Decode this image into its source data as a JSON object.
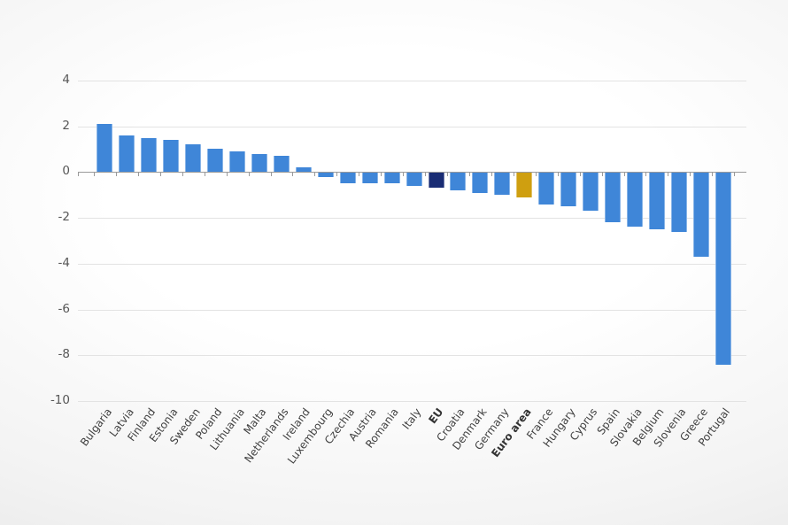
{
  "chart_data": {
    "type": "bar",
    "orientation": "vertical",
    "categories": [
      "Bulgaria",
      "Latvia",
      "Finland",
      "Estonia",
      "Sweden",
      "Poland",
      "Lithuania",
      "Malta",
      "Netherlands",
      "Ireland",
      "Luxembourg",
      "Czechia",
      "Austria",
      "Romania",
      "Italy",
      "EU",
      "Croatia",
      "Denmark",
      "Germany",
      "Euro area",
      "France",
      "Hungary",
      "Cyprus",
      "Spain",
      "Slovakia",
      "Belgium",
      "Slovenia",
      "Greece",
      "Portugal"
    ],
    "values": [
      2.1,
      1.6,
      1.5,
      1.4,
      1.2,
      1.0,
      0.9,
      0.8,
      0.7,
      0.2,
      -0.2,
      -0.5,
      -0.5,
      -0.5,
      -0.6,
      -0.7,
      -0.8,
      -0.9,
      -1.0,
      -1.1,
      -1.4,
      -1.5,
      -1.7,
      -2.2,
      -2.4,
      -2.5,
      -2.6,
      -3.7,
      -8.4
    ],
    "highlighted_categories": {
      "EU": "eu_bar",
      "Euro area": "euro_area_bar"
    },
    "bold_categories": [
      "EU",
      "Euro area"
    ],
    "axis": {
      "ymin": -10,
      "ymax": 5,
      "yticks": [
        4,
        2,
        0,
        -2,
        -4,
        -6,
        -8,
        -10
      ]
    },
    "grid": true,
    "legend_position": "none",
    "colors": {
      "default_bar": "#3f86d8",
      "eu_bar": "#192c74",
      "euro_area_bar": "#cf9f10",
      "gridline": "#e3e3e3",
      "axis_line": "#9a9a9a",
      "y_label_text": "#565656",
      "x_label_text": "#3f3f3f",
      "x_label_bold_text": "#333333"
    }
  }
}
